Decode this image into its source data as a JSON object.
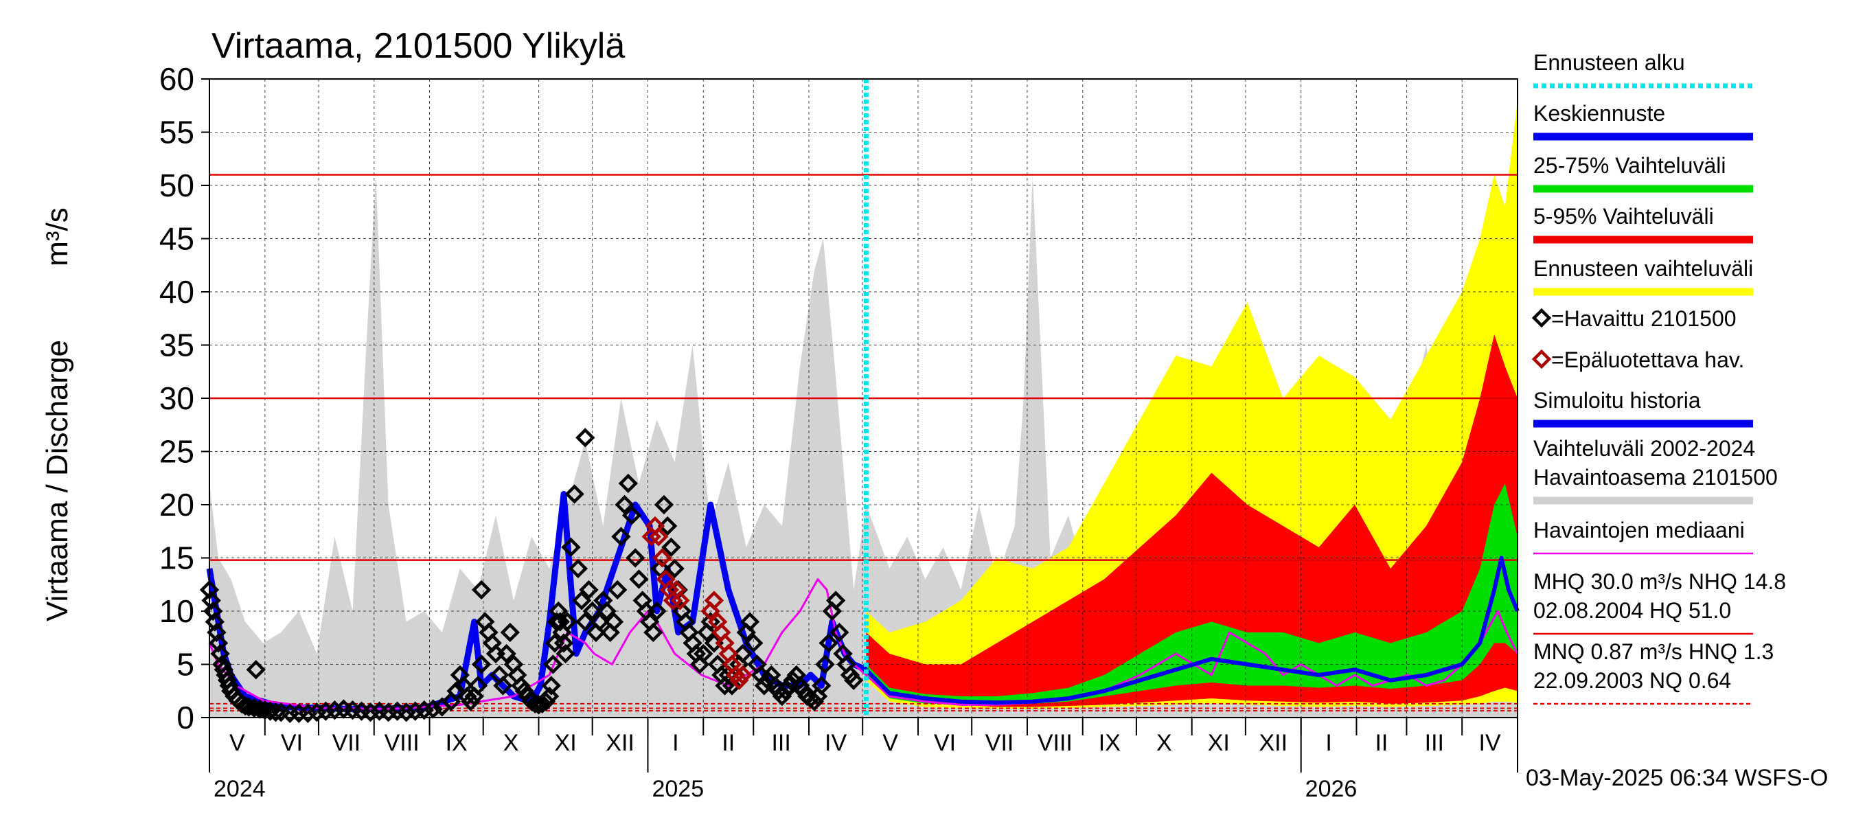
{
  "chart_data": {
    "type": "area",
    "title": "Virtaama, 2101500 Ylikylä",
    "ylabel": "Virtaama / Discharge",
    "yunit": "m³/s",
    "ylim": [
      0,
      60
    ],
    "yticks": [
      0,
      5,
      10,
      15,
      20,
      25,
      30,
      35,
      40,
      45,
      50,
      55,
      60
    ],
    "x_day_range": [
      0,
      731
    ],
    "months": [
      {
        "label": "V",
        "start": 0
      },
      {
        "label": "VI",
        "start": 31
      },
      {
        "label": "VII",
        "start": 61
      },
      {
        "label": "VIII",
        "start": 92
      },
      {
        "label": "IX",
        "start": 123
      },
      {
        "label": "X",
        "start": 153
      },
      {
        "label": "XI",
        "start": 184
      },
      {
        "label": "XII",
        "start": 214
      },
      {
        "label": "I",
        "start": 245
      },
      {
        "label": "II",
        "start": 276
      },
      {
        "label": "III",
        "start": 304
      },
      {
        "label": "IV",
        "start": 335
      },
      {
        "label": "V",
        "start": 365
      },
      {
        "label": "VI",
        "start": 396
      },
      {
        "label": "VII",
        "start": 426
      },
      {
        "label": "VIII",
        "start": 457
      },
      {
        "label": "IX",
        "start": 488
      },
      {
        "label": "X",
        "start": 518
      },
      {
        "label": "XI",
        "start": 549
      },
      {
        "label": "XII",
        "start": 579
      },
      {
        "label": "I",
        "start": 610
      },
      {
        "label": "II",
        "start": 641
      },
      {
        "label": "III",
        "start": 669
      },
      {
        "label": "IV",
        "start": 700
      }
    ],
    "year_labels": [
      {
        "label": "2024",
        "day": 0
      },
      {
        "label": "2025",
        "day": 245
      },
      {
        "label": "2026",
        "day": 610
      }
    ],
    "forecast_start_day": 367,
    "reference_lines": [
      {
        "name": "HQ",
        "value": 51.0,
        "style": "solid"
      },
      {
        "name": "MHQ",
        "value": 30.0,
        "style": "solid"
      },
      {
        "name": "NHQ",
        "value": 14.8,
        "style": "solid"
      },
      {
        "name": "HNQ",
        "value": 1.3,
        "style": "dashed"
      },
      {
        "name": "MNQ",
        "value": 0.87,
        "style": "dashed"
      },
      {
        "name": "NQ",
        "value": 0.64,
        "style": "dashed"
      }
    ],
    "historical_range": {
      "x": [
        0,
        5,
        12,
        20,
        30,
        40,
        50,
        60,
        70,
        80,
        88,
        93,
        100,
        110,
        120,
        130,
        140,
        150,
        160,
        170,
        180,
        190,
        200,
        210,
        220,
        230,
        240,
        250,
        260,
        270,
        280,
        290,
        300,
        310,
        320,
        330,
        338,
        343,
        350,
        360,
        367,
        380,
        390,
        400,
        410,
        420,
        430,
        440,
        450,
        455,
        460,
        470,
        480,
        490,
        500,
        510,
        520,
        530,
        540,
        550,
        560,
        570,
        580,
        590,
        600,
        610,
        620,
        630,
        640,
        650,
        660,
        670,
        680,
        690,
        700,
        710,
        718,
        724,
        731
      ],
      "values": [
        22,
        15,
        13,
        9,
        7,
        8,
        10,
        6,
        17,
        10,
        36,
        51,
        20,
        9,
        10,
        8,
        14,
        12,
        19,
        11,
        17,
        14,
        20,
        26,
        18,
        30,
        22,
        28,
        24,
        35,
        18,
        24,
        16,
        20,
        18,
        33,
        42,
        45,
        32,
        12,
        20,
        14,
        17,
        13,
        16,
        12,
        20,
        13,
        18,
        30,
        51,
        15,
        19,
        13,
        17,
        12,
        25,
        13,
        19,
        24,
        15,
        20,
        28,
        15,
        22,
        14,
        18,
        24,
        15,
        20,
        16,
        28,
        35,
        24,
        33,
        40,
        43,
        47,
        22
      ]
    },
    "forecast_5_95": {
      "x": [
        367,
        380,
        400,
        420,
        440,
        460,
        480,
        500,
        520,
        540,
        560,
        580,
        600,
        620,
        640,
        660,
        680,
        700,
        710,
        718,
        724,
        731
      ],
      "upper": [
        8,
        6,
        5,
        5,
        7,
        9,
        11,
        13,
        16,
        19,
        23,
        20,
        18,
        16,
        20,
        14,
        18,
        24,
        30,
        36,
        33,
        30
      ],
      "lower": [
        4,
        2,
        1.5,
        1.2,
        1.0,
        1.0,
        1.1,
        1.2,
        1.4,
        1.6,
        1.8,
        1.6,
        1.5,
        1.4,
        1.5,
        1.3,
        1.4,
        1.6,
        2.0,
        2.5,
        2.8,
        2.5
      ]
    },
    "forecast_range": {
      "x": [
        367,
        380,
        400,
        420,
        440,
        460,
        480,
        500,
        520,
        540,
        560,
        580,
        600,
        620,
        640,
        660,
        680,
        700,
        710,
        718,
        724,
        731
      ],
      "upper": [
        10,
        8,
        9,
        11,
        15,
        14,
        16,
        22,
        28,
        34,
        33,
        39,
        30,
        34,
        32,
        28,
        34,
        40,
        45,
        51,
        48,
        58
      ],
      "lower": [
        3.5,
        1.5,
        1.0,
        0.9,
        0.8,
        0.8,
        0.9,
        1.0,
        1.1,
        1.2,
        1.3,
        1.2,
        1.1,
        1.0,
        1.1,
        1.0,
        1.1,
        1.2,
        1.3,
        1.5,
        1.5,
        1.4
      ]
    },
    "forecast_25_75": {
      "x": [
        367,
        380,
        400,
        420,
        440,
        460,
        480,
        500,
        520,
        540,
        560,
        580,
        600,
        620,
        640,
        660,
        680,
        700,
        710,
        718,
        724,
        731
      ],
      "upper": [
        5,
        2.8,
        2.2,
        2.0,
        2.0,
        2.3,
        2.8,
        4,
        6,
        8,
        9,
        8,
        8,
        7,
        8,
        7,
        8,
        10,
        14,
        20,
        22,
        17
      ],
      "lower": [
        4,
        1.8,
        1.3,
        1.2,
        1.2,
        1.3,
        1.5,
        2,
        2.5,
        3,
        3.3,
        3,
        3,
        2.8,
        3,
        2.7,
        3,
        3.5,
        5,
        7,
        7,
        6
      ]
    },
    "forecast_median": {
      "x": [
        367,
        380,
        400,
        420,
        440,
        460,
        480,
        500,
        520,
        540,
        560,
        580,
        600,
        620,
        640,
        660,
        680,
        700,
        710,
        718,
        722,
        726,
        731
      ],
      "values": [
        4.5,
        2.3,
        1.8,
        1.5,
        1.4,
        1.5,
        1.8,
        2.5,
        3.5,
        4.5,
        5.5,
        5.0,
        4.5,
        4.0,
        4.5,
        3.5,
        4.0,
        5.0,
        7.0,
        12.0,
        15.0,
        12.0,
        10.0
      ]
    },
    "simulated_history": {
      "x": [
        0,
        2,
        5,
        8,
        12,
        20,
        40,
        80,
        120,
        140,
        148,
        152,
        158,
        170,
        180,
        185,
        190,
        198,
        205,
        210,
        218,
        228,
        238,
        246,
        250,
        256,
        262,
        270,
        280,
        290,
        300,
        310,
        320,
        330,
        336,
        342,
        348,
        355,
        360,
        367
      ],
      "values": [
        14,
        12,
        9,
        6,
        4,
        2,
        1.0,
        0.8,
        0.9,
        2,
        9,
        3,
        4,
        2,
        1.5,
        3,
        9,
        21,
        6,
        8,
        10,
        15,
        20,
        18,
        10,
        14,
        8,
        9,
        20,
        12,
        7,
        4,
        3,
        3,
        4,
        3,
        9,
        6,
        5,
        4.5
      ]
    },
    "observed_median": {
      "x": [
        0,
        5,
        15,
        30,
        60,
        100,
        140,
        170,
        190,
        200,
        210,
        215,
        225,
        235,
        245,
        250,
        260,
        275,
        290,
        300,
        310,
        320,
        330,
        340,
        345,
        350,
        355,
        360,
        367,
        380,
        400,
        420,
        440,
        460,
        480,
        500,
        520,
        530,
        540,
        550,
        560,
        570,
        580,
        590,
        600,
        610,
        620,
        630,
        640,
        650,
        660,
        670,
        680,
        690,
        700,
        710,
        720,
        725,
        731
      ],
      "values": [
        7,
        5,
        3,
        1.6,
        0.9,
        0.8,
        1.2,
        2,
        4,
        8,
        7,
        6,
        5,
        8,
        10,
        9,
        6,
        4,
        3,
        4,
        5,
        8,
        10,
        13,
        12,
        8,
        6,
        5,
        4,
        2,
        1.5,
        1.2,
        1.2,
        1.4,
        1.8,
        2.5,
        4,
        5,
        6,
        5,
        4,
        8,
        7,
        6,
        4,
        5,
        4,
        3,
        4,
        3,
        3.5,
        4,
        3,
        3.5,
        5,
        7,
        10,
        8,
        6
      ]
    },
    "observed": {
      "x": [
        0,
        1,
        2,
        3,
        4,
        5,
        6,
        7,
        8,
        9,
        10,
        11,
        12,
        14,
        16,
        18,
        20,
        22,
        25,
        28,
        31,
        34,
        37,
        40,
        45,
        50,
        55,
        60,
        65,
        70,
        75,
        80,
        85,
        90,
        95,
        100,
        105,
        110,
        115,
        120,
        125,
        130,
        135,
        138,
        140,
        142,
        144,
        146,
        148,
        150,
        152,
        154,
        156,
        158,
        160,
        162,
        164,
        166,
        168,
        170,
        172,
        174,
        176,
        178,
        180,
        182,
        184,
        186,
        188,
        190,
        191,
        192,
        193,
        194,
        195,
        196,
        197,
        198,
        199,
        200,
        202,
        204,
        206,
        208,
        210,
        212,
        214,
        216,
        218,
        220,
        222,
        224,
        226,
        228,
        230,
        232,
        234,
        236,
        238,
        240,
        242,
        244,
        246,
        248,
        250,
        252,
        254,
        256,
        258,
        260,
        262,
        264,
        266,
        268,
        270,
        272,
        274,
        276,
        278,
        280,
        282,
        284,
        286,
        288,
        290,
        292,
        294,
        296,
        298,
        300,
        302,
        304,
        306,
        308,
        310,
        312,
        314,
        316,
        318,
        320,
        322,
        324,
        326,
        328,
        330,
        332,
        334,
        336,
        338,
        340,
        342,
        344,
        346,
        348,
        350,
        352,
        354,
        356,
        358,
        360
      ],
      "values": [
        12,
        11,
        10,
        9,
        8,
        7,
        6,
        5,
        4.5,
        4,
        3.5,
        3,
        2.5,
        2,
        1.6,
        1.3,
        1.1,
        1.0,
        0.9,
        0.8,
        0.7,
        0.6,
        0.5,
        0.5,
        0.4,
        0.4,
        0.4,
        0.5,
        0.6,
        0.7,
        0.8,
        0.7,
        0.6,
        0.5,
        0.6,
        0.5,
        0.6,
        0.5,
        0.6,
        0.7,
        0.8,
        1.0,
        1.5,
        2.5,
        4,
        3,
        2,
        1.5,
        2,
        3,
        5,
        9,
        8,
        7,
        6,
        4,
        3,
        6,
        8,
        5,
        4,
        3,
        2.5,
        2,
        1.5,
        1.3,
        1.2,
        1.3,
        1.5,
        2,
        3,
        5,
        7,
        9,
        10,
        9,
        8,
        7,
        6,
        9,
        16,
        21,
        14,
        11,
        9,
        12,
        10,
        8,
        9,
        11,
        10,
        8,
        9,
        12,
        17,
        20,
        22,
        19,
        15,
        13,
        11,
        10,
        9,
        8,
        10,
        14,
        20,
        18,
        16,
        14,
        12,
        10,
        9,
        8,
        7,
        6,
        5,
        6,
        8,
        9,
        7,
        5,
        4,
        3,
        4,
        3,
        4,
        5,
        6,
        8,
        9,
        7,
        5,
        4,
        3,
        3.5,
        4,
        3,
        2.5,
        2,
        2.5,
        3,
        3.5,
        4,
        3,
        2.5,
        2,
        1.8,
        1.5,
        2,
        3,
        5,
        7,
        10,
        11,
        8,
        6,
        5,
        4,
        3.5
      ]
    },
    "observed_extra": [
      {
        "x": 210,
        "value": 26.3
      },
      {
        "x": 152,
        "value": 12
      },
      {
        "x": 26,
        "value": 4.5
      }
    ],
    "unreliable": {
      "x": [
        247,
        249,
        251,
        253,
        255,
        257,
        259,
        261,
        263,
        280,
        282,
        284,
        286,
        288,
        290,
        292,
        294,
        296,
        298
      ],
      "values": [
        17,
        18,
        17,
        15,
        13,
        12,
        11,
        12,
        11,
        10,
        11,
        9,
        8,
        7,
        6,
        5,
        4,
        3.5,
        4
      ]
    },
    "legend": [
      {
        "label": "Ennusteen alku",
        "color": "#00e5ee",
        "style": "dotted"
      },
      {
        "label": "Keskiennuste",
        "color": "#0000ee",
        "style": "line"
      },
      {
        "label": "25-75% Vaihteluväli",
        "color": "#00dd00",
        "style": "line"
      },
      {
        "label": "5-95% Vaihteluväli",
        "color": "#ee0000",
        "style": "line"
      },
      {
        "label": "Ennusteen vaihteluväli",
        "color": "#ffff00",
        "style": "line"
      },
      {
        "label": "=Havaittu 2101500",
        "color": "#000000",
        "style": "diamond"
      },
      {
        "label": "=Epäluotettava hav.",
        "color": "#aa0000",
        "style": "diamond"
      },
      {
        "label": "Simuloitu historia",
        "color": "#0000ee",
        "style": "line"
      },
      {
        "label": "Vaihteluväli 2002-2024\n Havaintoasema 2101500",
        "color": "#d0d0d0",
        "style": "line"
      },
      {
        "label": "Havaintojen mediaani",
        "color": "#ee00ee",
        "style": "thin"
      },
      {
        "label": "MHQ 30.0 m³/s NHQ 14.8\n02.08.2004 HQ 51.0",
        "color": "#ee0000",
        "style": "thin"
      },
      {
        "label": "MNQ 0.87 m³/s HNQ  1.3\n22.09.2003 NQ 0.64",
        "color": "#ee0000",
        "style": "dashed"
      }
    ],
    "footer": "03-May-2025 06:34 WSFS-O"
  },
  "colors": {
    "historical": "#d3d3d3",
    "forecast_range": "#ffff00",
    "band_5_95": "#ff0000",
    "band_25_75": "#00dd00",
    "median": "#0000ee",
    "observed_median": "#ee00ee",
    "reference": "#dd0000",
    "forecast_start": "#00e5ee",
    "observed": "#000000",
    "unreliable": "#aa0000"
  }
}
